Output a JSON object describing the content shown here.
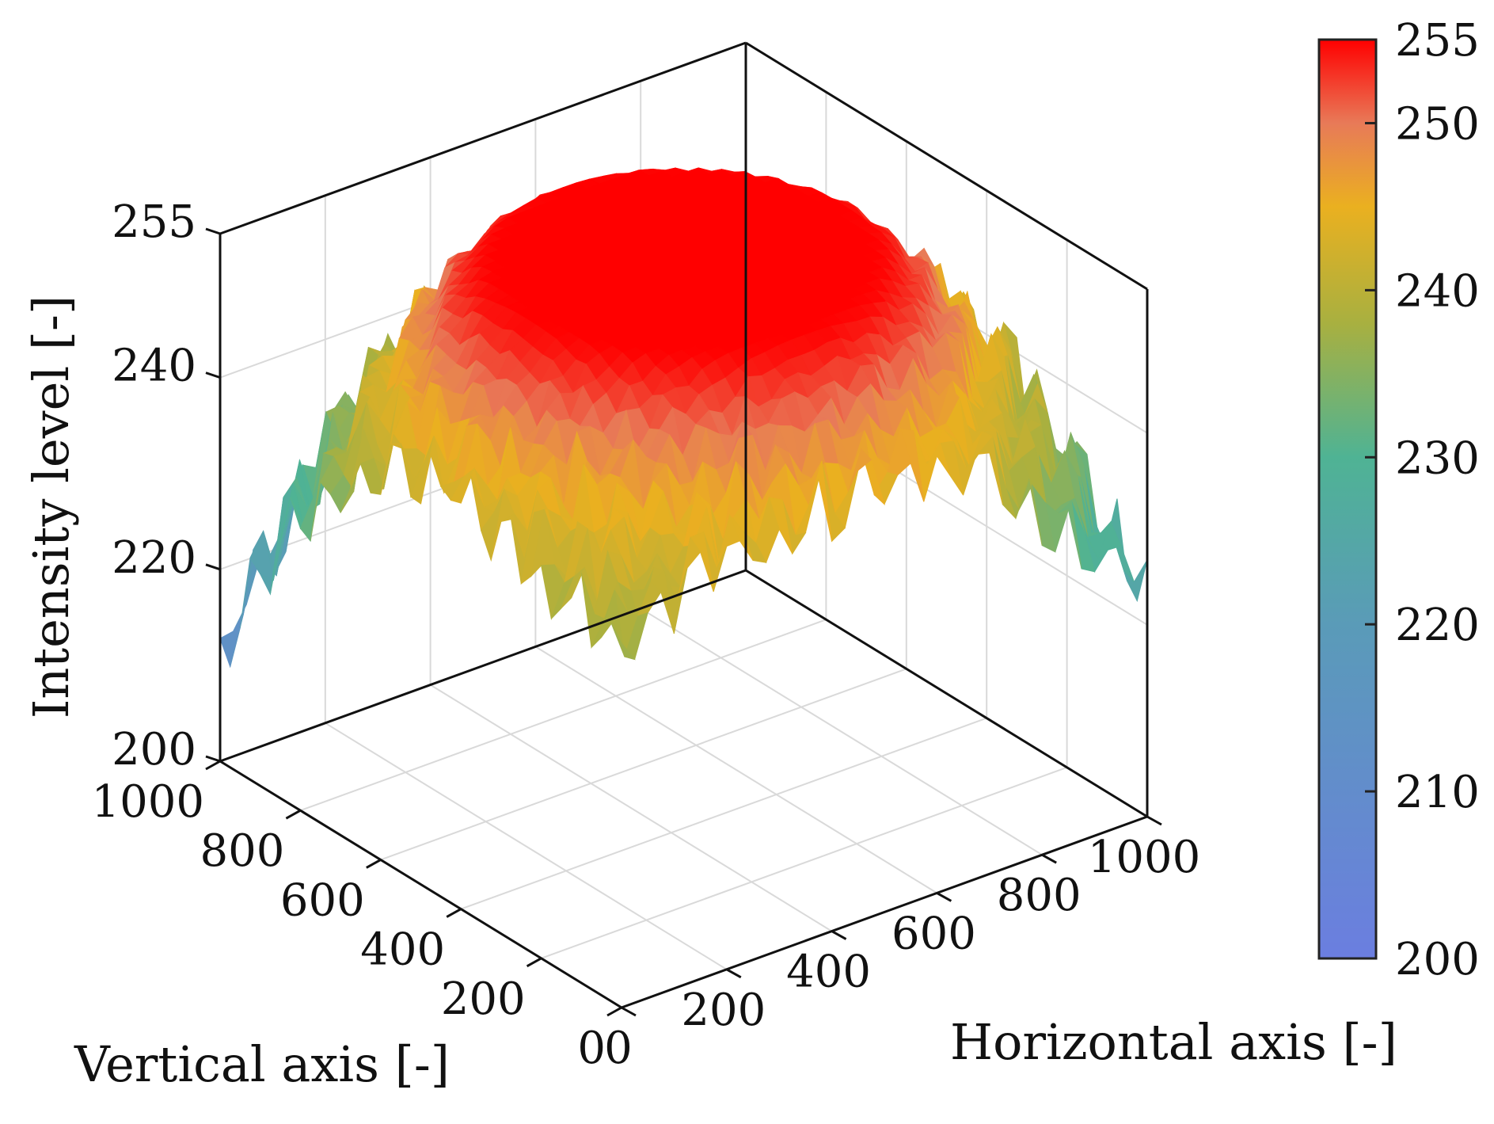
{
  "chart_data": {
    "type": "surface",
    "title": "",
    "xlabel": "Horizontal axis [-]",
    "ylabel": "Vertical axis [-]",
    "zlabel": "Intensity level [-]",
    "x_ticks": [
      "0",
      "200",
      "400",
      "600",
      "800",
      "1000"
    ],
    "y_ticks": [
      "0",
      "200",
      "400",
      "600",
      "800",
      "1000"
    ],
    "z_ticks": [
      "200",
      "220",
      "240",
      "255"
    ],
    "xlim": [
      0,
      1000
    ],
    "ylim": [
      0,
      1000
    ],
    "zlim": [
      200,
      255
    ],
    "grid": true,
    "colorbar": {
      "placement": "right",
      "range": [
        200,
        255
      ],
      "ticks": [
        "200",
        "210",
        "220",
        "230",
        "240",
        "250",
        "255"
      ],
      "colormap": [
        {
          "value": 200,
          "color": "#6b7ee0"
        },
        {
          "value": 220,
          "color": "#5a9bb8"
        },
        {
          "value": 230,
          "color": "#4fb394"
        },
        {
          "value": 238,
          "color": "#a8b040"
        },
        {
          "value": 245,
          "color": "#eab020"
        },
        {
          "value": 250,
          "color": "#e87a58"
        },
        {
          "value": 255,
          "color": "#ff0000"
        }
      ]
    },
    "surface": {
      "description_model": "vignetting",
      "center": [
        500,
        500
      ],
      "plateau_value": 255,
      "plateau_radius": 300,
      "corner_values": {
        "x0_y0": 240,
        "x1000_y0": 225,
        "x0_y1000": 213,
        "x1000_y1000": 218
      },
      "edge_min": {
        "x0_y500": 216,
        "x1000_y500": 232,
        "x500_y0": 238,
        "x500_y1000": 236
      }
    }
  }
}
